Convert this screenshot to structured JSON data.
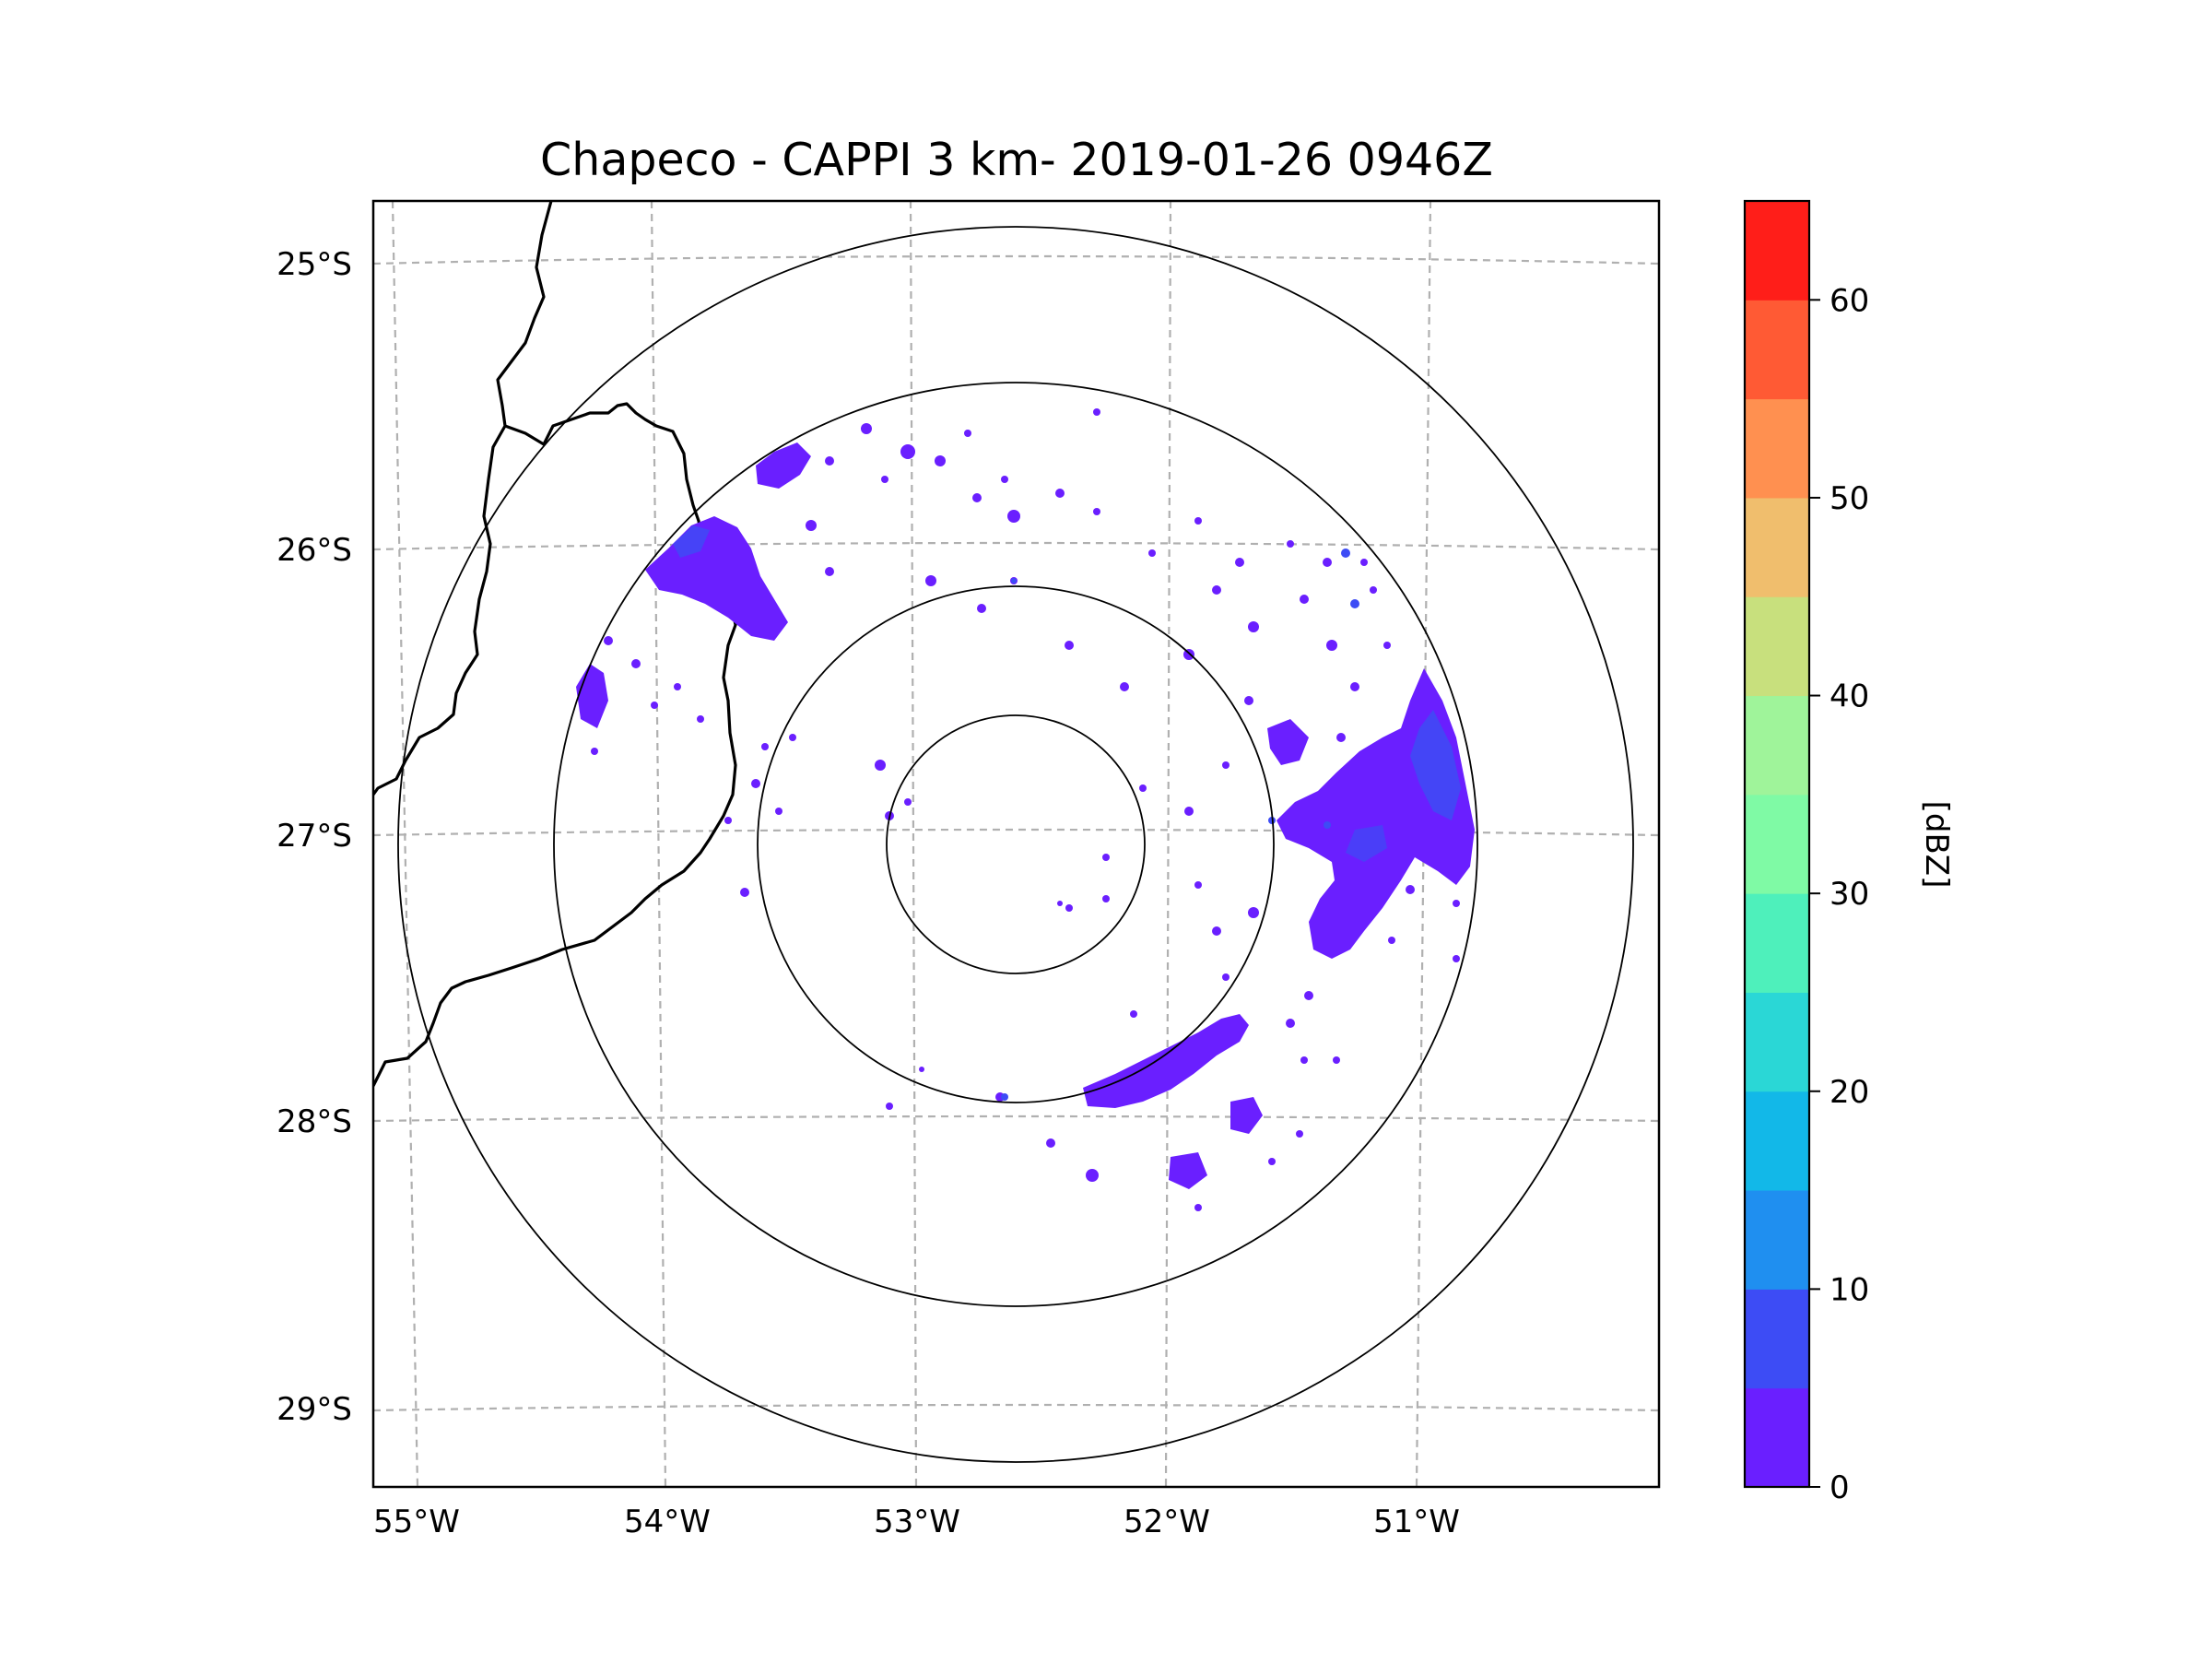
{
  "title": "Chapeco - CAPPI 3 km- 2019-01-26 0946Z",
  "map": {
    "lat_labels": [
      "25°S",
      "26°S",
      "27°S",
      "28°S",
      "29°S"
    ],
    "lon_labels": [
      "55°W",
      "54°W",
      "53°W",
      "52°W",
      "51°W"
    ],
    "range_rings": 4,
    "gridline_color": "#b0b0b0",
    "border_color": "#000000",
    "echo_color_primary": "#6a1fff",
    "echo_color_secondary": "#3d4cf5"
  },
  "colorbar": {
    "label": "[dBZ]",
    "ticks": [
      "0",
      "10",
      "20",
      "30",
      "40",
      "50",
      "60"
    ],
    "min": 0,
    "max": 65,
    "step": 5,
    "colors": [
      "#6a1fff",
      "#3d4cf5",
      "#1f8ff0",
      "#12b8e8",
      "#2ad7d6",
      "#4ef0bb",
      "#7ffaa5",
      "#9ff49a",
      "#c8e07d",
      "#f0be6d",
      "#ff9050",
      "#ff5a34",
      "#ff1e19"
    ]
  }
}
